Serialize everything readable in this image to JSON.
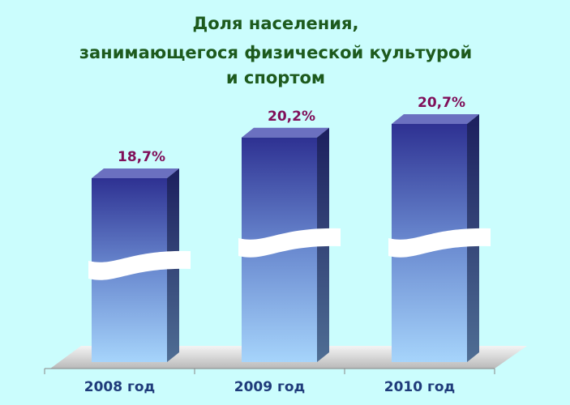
{
  "chart_data": {
    "type": "bar3d",
    "title": [
      "Доля населения,",
      "занимающегося физической культурой",
      "и спортом"
    ],
    "categories": [
      "2008 год",
      "2009 год",
      "2010 год"
    ],
    "values": [
      18.7,
      20.2,
      20.7
    ],
    "value_labels": [
      "18,7%",
      "20,2%",
      "20,7%"
    ],
    "color": "#2e3192"
  }
}
